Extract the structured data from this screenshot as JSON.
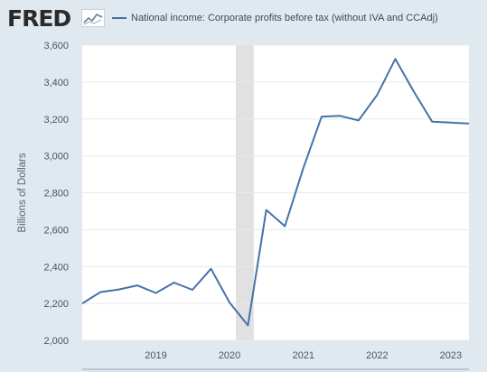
{
  "header": {
    "logo_text": "FRED",
    "logo_mark": "trend-line-icon",
    "legend_label": "National income: Corporate profits before tax (without IVA and CCAdj)"
  },
  "colors": {
    "series": "#4572a7",
    "recession": "#e1e1e1",
    "plot_background": "#ffffff",
    "page_background": "#e1e9f0",
    "grid": "#e9e9e9"
  },
  "chart_data": {
    "type": "line",
    "ylabel": "Billions of Dollars",
    "ylim": [
      2000,
      3600
    ],
    "yticks": [
      2000,
      2200,
      2400,
      2600,
      2800,
      3000,
      3200,
      3400,
      3600
    ],
    "ytick_labels": [
      "2,000",
      "2,200",
      "2,400",
      "2,600",
      "2,800",
      "3,000",
      "3,200",
      "3,400",
      "3,600"
    ],
    "xlim": [
      "2018-01-01",
      "2023-04-01"
    ],
    "xticks": [
      "2019-01-01",
      "2020-01-01",
      "2021-01-01",
      "2022-01-01",
      "2023-01-01"
    ],
    "xtick_labels": [
      "2019",
      "2020",
      "2021",
      "2022",
      "2023"
    ],
    "grid": "horizontal",
    "legend": "top",
    "recession": {
      "start": "2020-02-01",
      "end": "2020-04-30"
    },
    "series": [
      {
        "name": "National income: Corporate profits before tax (without IVA and CCAdj)",
        "x": [
          "2018-01-01",
          "2018-04-01",
          "2018-07-01",
          "2018-10-01",
          "2019-01-01",
          "2019-04-01",
          "2019-07-01",
          "2019-10-01",
          "2020-01-01",
          "2020-04-01",
          "2020-07-01",
          "2020-10-01",
          "2021-01-01",
          "2021-04-01",
          "2021-07-01",
          "2021-10-01",
          "2022-01-01",
          "2022-04-01",
          "2022-07-01",
          "2022-10-01",
          "2023-01-01",
          "2023-04-01"
        ],
        "values": [
          2200,
          2262,
          2276,
          2298,
          2257,
          2313,
          2274,
          2388,
          2205,
          2081,
          2707,
          2619,
          2935,
          3212,
          3217,
          3192,
          3330,
          3525,
          3350,
          3185,
          3180,
          3175
        ]
      }
    ]
  }
}
